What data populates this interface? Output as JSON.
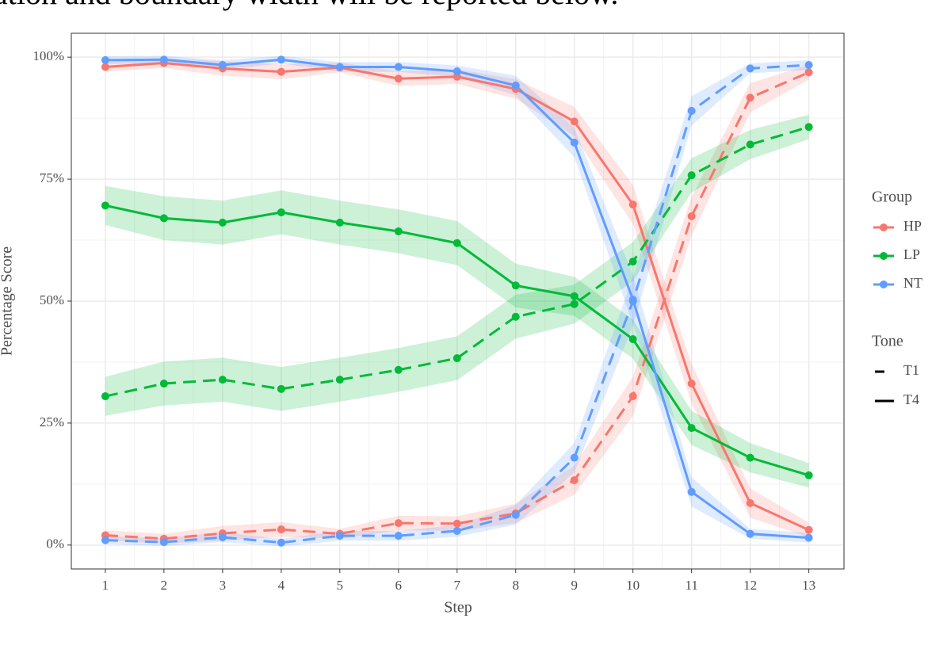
{
  "caption": "ation and boundary width will be reported below.",
  "chart_data": {
    "type": "line",
    "x_label": "Step",
    "y_label": "Percentage Score",
    "x": [
      1,
      2,
      3,
      4,
      5,
      6,
      7,
      8,
      9,
      10,
      11,
      12,
      13
    ],
    "xlim": [
      0.42,
      13.6
    ],
    "xticks": [
      1,
      2,
      3,
      4,
      5,
      6,
      7,
      8,
      9,
      10,
      11,
      12,
      13
    ],
    "ylim": [
      -4.9,
      104.9
    ],
    "yticks": [
      {
        "value": 0,
        "label": "0%"
      },
      {
        "value": 25,
        "label": "25%"
      },
      {
        "value": 50,
        "label": "50%"
      },
      {
        "value": 75,
        "label": "75%"
      },
      {
        "value": 100,
        "label": "100%"
      }
    ],
    "grid": true,
    "legend": {
      "position": "right",
      "color_title": "Group",
      "color_entries": [
        {
          "name": "HP",
          "color": "#F8766D"
        },
        {
          "name": "LP",
          "color": "#00BA38"
        },
        {
          "name": "NT",
          "color": "#619CFF"
        }
      ],
      "linetype_title": "Tone",
      "linetype_entries": [
        {
          "name": "T1",
          "linetype": "dashed"
        },
        {
          "name": "T4",
          "linetype": "solid"
        }
      ]
    },
    "series": [
      {
        "group": "HP",
        "tone": "T1",
        "values": [
          2,
          1.3,
          2.4,
          3.2,
          2.3,
          4.5,
          4.4,
          6.5,
          13.3,
          30.5,
          67.4,
          91.7,
          96.9
        ],
        "lower": [
          1,
          0.3,
          0.9,
          1.7,
          1.3,
          3,
          2.9,
          4.5,
          10.3,
          26.5,
          63.4,
          88.7,
          95.4
        ],
        "upper": [
          3,
          2.3,
          3.9,
          4.7,
          3.3,
          6,
          5.9,
          8.5,
          16.3,
          34.5,
          71.4,
          94.7,
          98.4
        ]
      },
      {
        "group": "HP",
        "tone": "T4",
        "values": [
          98,
          98.8,
          97.7,
          97,
          97.9,
          95.6,
          96,
          93.5,
          86.8,
          69.8,
          33.1,
          8.6,
          3.1
        ],
        "lower": [
          97,
          97.8,
          96.2,
          95.5,
          96.9,
          94.1,
          94.5,
          91.5,
          83.8,
          65.8,
          29.1,
          5.6,
          1.6
        ],
        "upper": [
          99,
          99.8,
          99.2,
          98.5,
          98.9,
          97.1,
          97.5,
          95.5,
          89.8,
          73.8,
          37.1,
          11.6,
          4.6
        ]
      },
      {
        "group": "LP",
        "tone": "T1",
        "values": [
          30.5,
          33.1,
          33.9,
          32,
          33.9,
          35.9,
          38.3,
          46.8,
          49.4,
          58.1,
          75.8,
          82.1,
          85.7
        ],
        "lower": [
          26.5,
          28.6,
          29.4,
          27.5,
          29.4,
          31.4,
          33.8,
          42.3,
          45.4,
          54.1,
          72.3,
          79.1,
          83.2
        ],
        "upper": [
          34.5,
          37.6,
          38.4,
          36.5,
          38.4,
          40.4,
          42.8,
          51.3,
          53.4,
          62.1,
          79.3,
          85.1,
          88.2
        ]
      },
      {
        "group": "LP",
        "tone": "T4",
        "values": [
          69.6,
          67,
          66.1,
          68.2,
          66.1,
          64.3,
          61.9,
          53.2,
          51,
          42.2,
          24,
          17.9,
          14.3
        ],
        "lower": [
          65.6,
          62.5,
          61.6,
          63.7,
          61.6,
          59.8,
          57.4,
          48.7,
          47,
          38.2,
          20.5,
          14.9,
          11.8
        ],
        "upper": [
          73.6,
          71.5,
          70.6,
          72.7,
          70.6,
          68.8,
          66.4,
          57.7,
          55,
          46.2,
          27.5,
          20.9,
          16.8
        ]
      },
      {
        "group": "NT",
        "tone": "T1",
        "values": [
          1,
          0.6,
          1.6,
          0.5,
          1.9,
          1.9,
          2.9,
          6.2,
          17.9,
          50,
          89,
          97.7,
          98.4
        ],
        "lower": [
          0.2,
          -0.2,
          0.6,
          -0.3,
          0.9,
          0.9,
          1.7,
          4.2,
          14.9,
          45,
          86,
          96.7,
          97.4
        ],
        "upper": [
          1.8,
          1.4,
          2.6,
          1.3,
          2.9,
          2.9,
          4.1,
          8.2,
          20.9,
          55,
          92,
          98.7,
          99.4
        ]
      },
      {
        "group": "NT",
        "tone": "T4",
        "values": [
          99.4,
          99.5,
          98.4,
          99.5,
          98,
          98,
          97.1,
          94.2,
          82.5,
          50.3,
          10.9,
          2.3,
          1.5
        ],
        "lower": [
          98.6,
          98.7,
          97.4,
          98.7,
          97,
          97,
          95.9,
          92.2,
          79.5,
          45.3,
          7.9,
          1.3,
          0.5
        ],
        "upper": [
          100.2,
          100.3,
          99.4,
          100.3,
          99,
          99,
          98.3,
          96.2,
          85.5,
          55.3,
          13.9,
          3.3,
          2.5
        ]
      }
    ]
  }
}
